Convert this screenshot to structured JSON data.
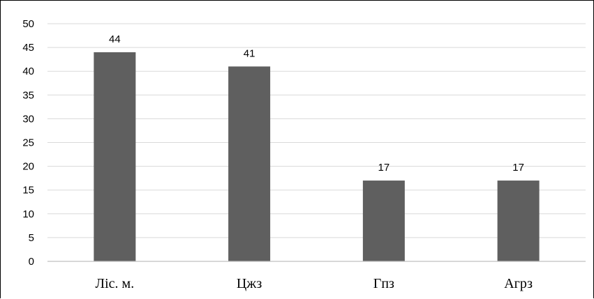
{
  "chart_data": {
    "type": "bar",
    "categories": [
      "Ліс. м.",
      "Цжз",
      "Гпз",
      "Агрз"
    ],
    "values": [
      44,
      41,
      17,
      17
    ],
    "data_labels": [
      "44",
      "41",
      "17",
      "17"
    ],
    "title": "",
    "xlabel": "",
    "ylabel": "",
    "ylim": [
      0,
      50
    ],
    "yticks": [
      0,
      5,
      10,
      15,
      20,
      25,
      30,
      35,
      40,
      45,
      50
    ],
    "grid": true,
    "legend": "none",
    "colors": {
      "bar": "#5f5f5f",
      "grid": "#d9d9d9",
      "axis": "#bfbfbf"
    }
  }
}
